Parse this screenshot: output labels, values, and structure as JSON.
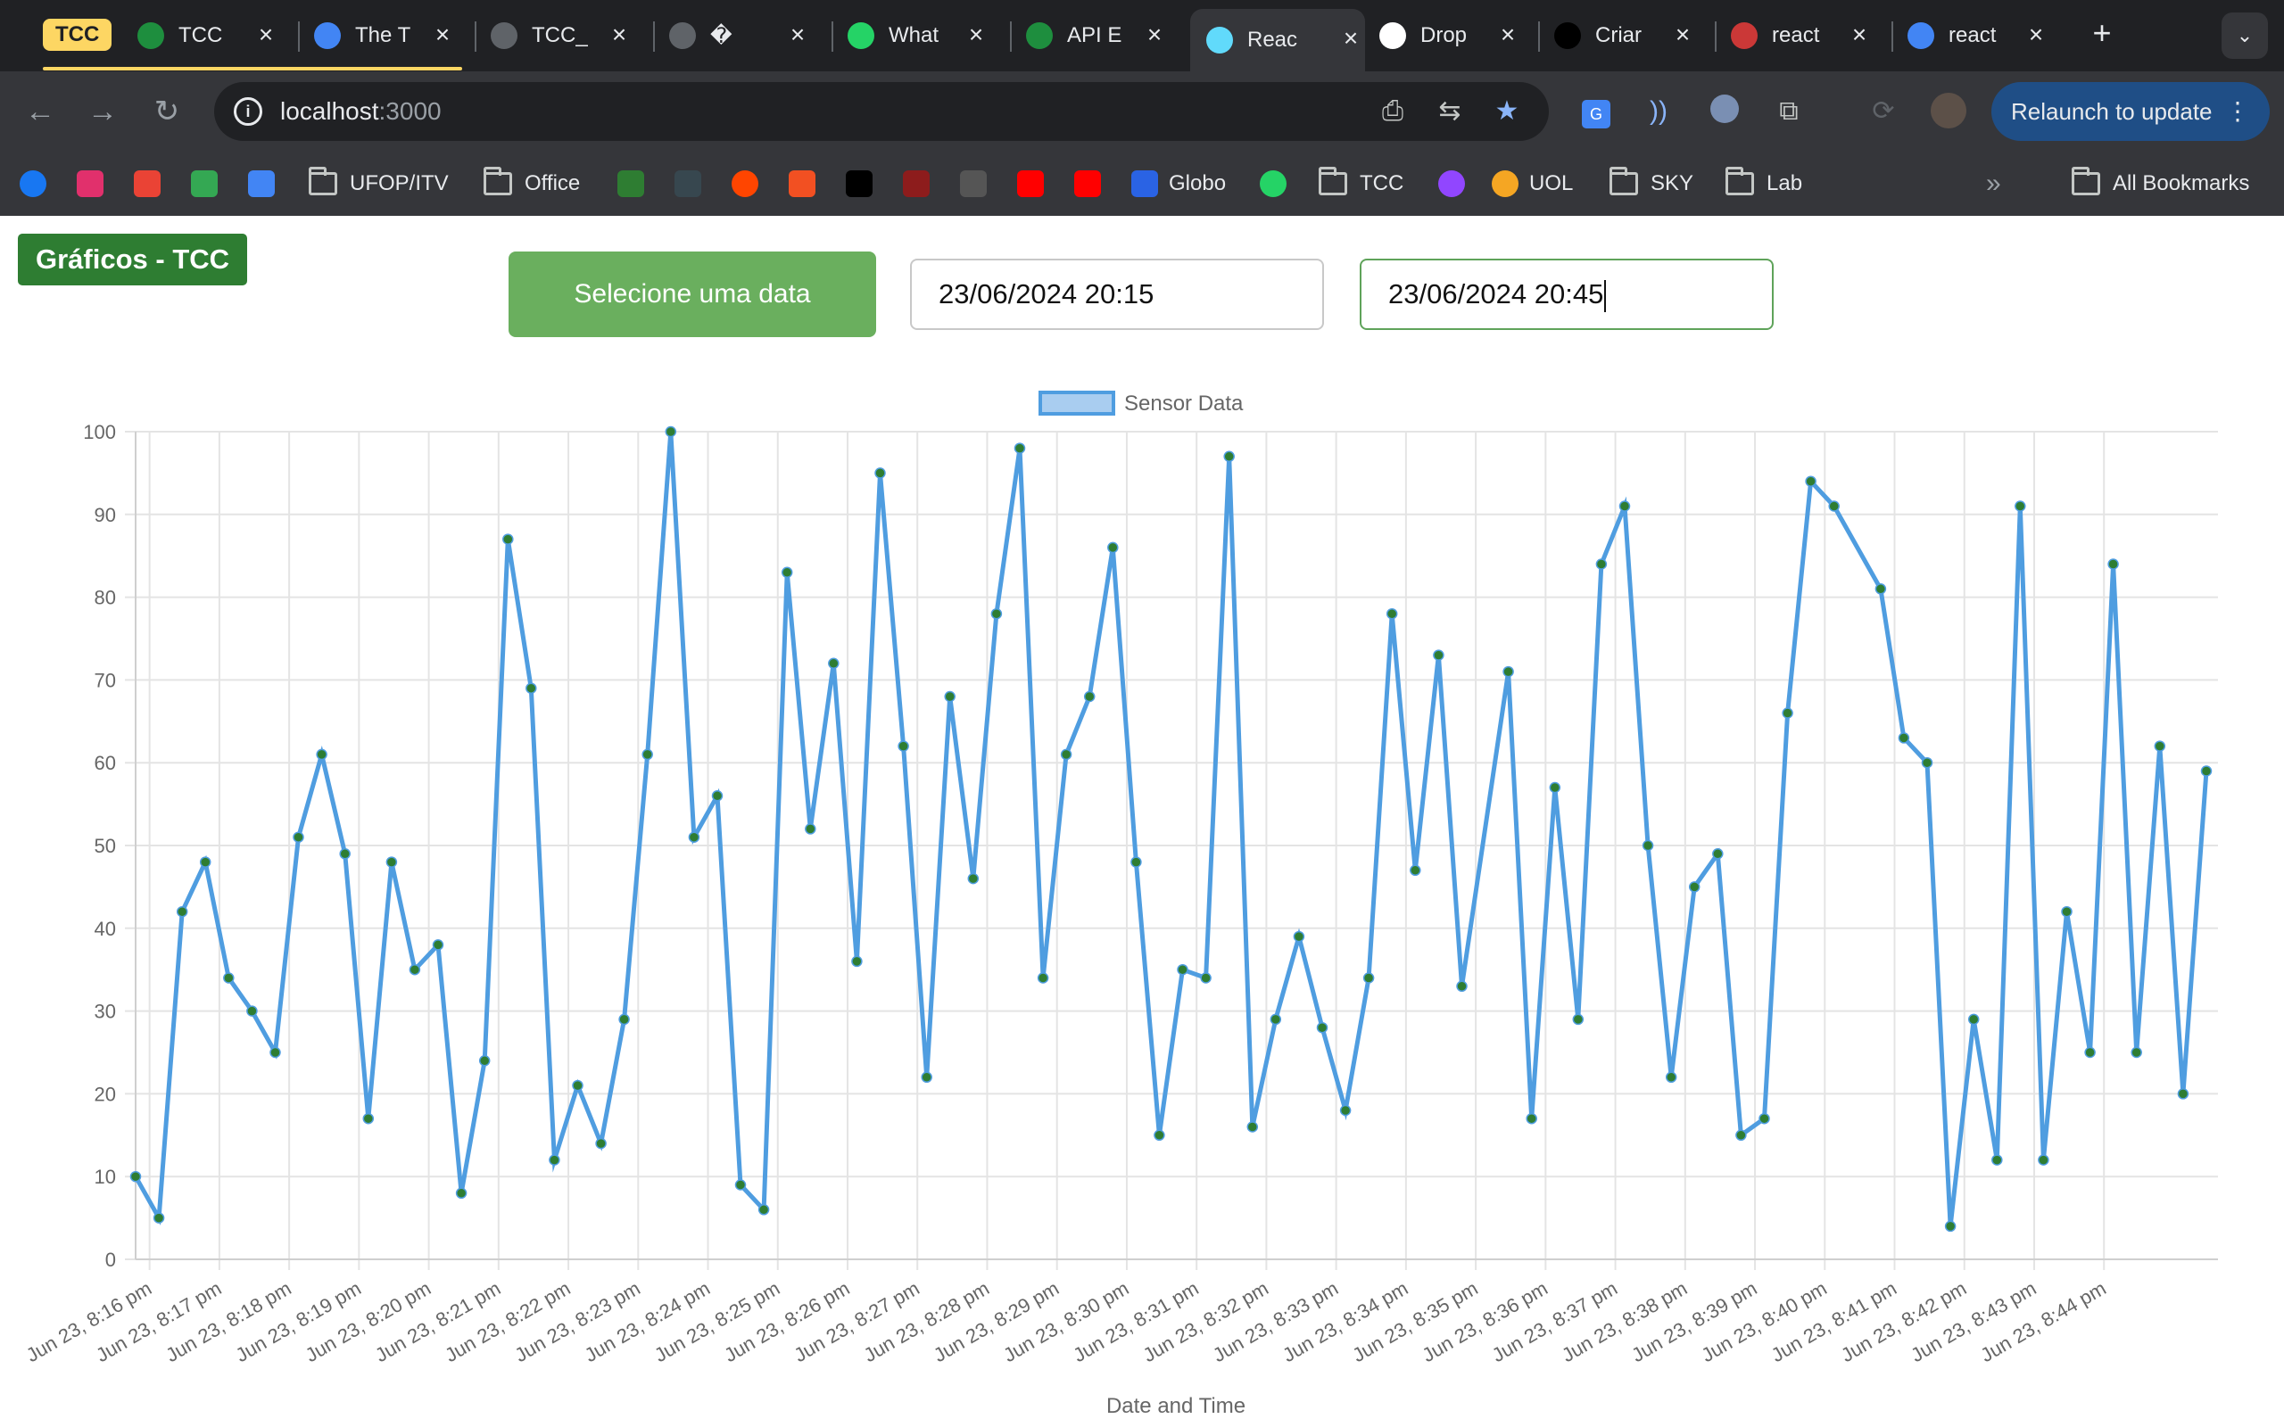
{
  "browser": {
    "tab_group": "TCC",
    "tabs": [
      {
        "title": "TCC",
        "icon": "leaf-icon",
        "color": "#1e8e3e"
      },
      {
        "title": "The T",
        "icon": "circle-logo-icon",
        "color": "#4285f4"
      },
      {
        "title": "TCC_",
        "icon": "globe-icon",
        "color": "#5f6368"
      },
      {
        "title": "�",
        "icon": "globe-icon",
        "color": "#5f6368"
      },
      {
        "title": "What",
        "icon": "whatsapp-icon",
        "color": "#25d366"
      },
      {
        "title": "API E",
        "icon": "alarm-icon",
        "color": "#1e8e3e"
      },
      {
        "title": "Reac",
        "icon": "react-icon",
        "color": "#61dafb"
      },
      {
        "title": "Drop",
        "icon": "openai-icon",
        "color": "#ffffff"
      },
      {
        "title": "Criar",
        "icon": "medium-icon",
        "color": "#000000"
      },
      {
        "title": "react",
        "icon": "npm-icon",
        "color": "#cb3837"
      },
      {
        "title": "react",
        "icon": "google-icon",
        "color": "#4285f4"
      }
    ],
    "address": {
      "host": "localhost",
      "port": ":3000"
    },
    "relaunch_label": "Relaunch to update",
    "bookmarks": [
      {
        "label": "",
        "icon": "facebook-icon",
        "color": "#1877f2"
      },
      {
        "label": "",
        "icon": "instagram-icon",
        "color": "#e1306c"
      },
      {
        "label": "",
        "icon": "gmail-icon",
        "color": "#ea4335"
      },
      {
        "label": "",
        "icon": "google-drive-icon",
        "color": "#34a853"
      },
      {
        "label": "",
        "icon": "google-calendar-icon",
        "color": "#4285f4"
      },
      {
        "label": "UFOP/ITV",
        "icon": "folder-icon"
      },
      {
        "label": "Office",
        "icon": "folder-icon"
      },
      {
        "label": "",
        "icon": "app-icon",
        "color": "#2e7d32"
      },
      {
        "label": "",
        "icon": "app-icon",
        "color": "#37474f"
      },
      {
        "label": "",
        "icon": "reddit-icon",
        "color": "#ff4500"
      },
      {
        "label": "",
        "icon": "microsoft-icon",
        "color": "#f25022"
      },
      {
        "label": "",
        "icon": "x-icon",
        "color": "#000000"
      },
      {
        "label": "",
        "icon": "app-icon",
        "color": "#8d1c1c"
      },
      {
        "label": "",
        "icon": "app-icon",
        "color": "#555555"
      },
      {
        "label": "",
        "icon": "youtube-icon",
        "color": "#ff0000"
      },
      {
        "label": "",
        "icon": "youtube-music-icon",
        "color": "#ff0000"
      },
      {
        "label": "Globo",
        "icon": "globo-icon",
        "color": "#2a63e4"
      },
      {
        "label": "",
        "icon": "whatsapp-icon",
        "color": "#25d366"
      },
      {
        "label": "TCC",
        "icon": "folder-icon"
      },
      {
        "label": "",
        "icon": "twitch-icon",
        "color": "#9146ff"
      },
      {
        "label": "UOL",
        "icon": "uol-icon",
        "color": "#f5a623"
      },
      {
        "label": "SKY",
        "icon": "folder-icon"
      },
      {
        "label": "Lab",
        "icon": "folder-icon"
      }
    ],
    "all_bookmarks_label": "All Bookmarks"
  },
  "app": {
    "title": "Gráficos - TCC",
    "date_button_label": "Selecione uma data",
    "date_start": "23/06/2024 20:15",
    "date_end": "23/06/2024 20:45"
  },
  "chart_data": {
    "type": "line",
    "title": "",
    "xlabel": "Date and Time",
    "ylabel": "",
    "ylim": [
      0,
      100
    ],
    "y_ticks": [
      0,
      10,
      20,
      30,
      40,
      50,
      60,
      70,
      80,
      90,
      100
    ],
    "grid": true,
    "legend_position": "top",
    "line_color": "#4f9de0",
    "point_color": "#2e7d32",
    "x_tick_labels": [
      "Jun 23, 8:16 pm",
      "Jun 23, 8:17 pm",
      "Jun 23, 8:18 pm",
      "Jun 23, 8:19 pm",
      "Jun 23, 8:20 pm",
      "Jun 23, 8:21 pm",
      "Jun 23, 8:22 pm",
      "Jun 23, 8:23 pm",
      "Jun 23, 8:24 pm",
      "Jun 23, 8:25 pm",
      "Jun 23, 8:26 pm",
      "Jun 23, 8:27 pm",
      "Jun 23, 8:28 pm",
      "Jun 23, 8:29 pm",
      "Jun 23, 8:30 pm",
      "Jun 23, 8:31 pm",
      "Jun 23, 8:32 pm",
      "Jun 23, 8:33 pm",
      "Jun 23, 8:34 pm",
      "Jun 23, 8:35 pm",
      "Jun 23, 8:36 pm",
      "Jun 23, 8:37 pm",
      "Jun 23, 8:38 pm",
      "Jun 23, 8:39 pm",
      "Jun 23, 8:40 pm",
      "Jun 23, 8:41 pm",
      "Jun 23, 8:42 pm",
      "Jun 23, 8:43 pm",
      "Jun 23, 8:44 pm"
    ],
    "x_range": [
      "2024-06-23 20:15:48",
      "2024-06-23 20:45:38"
    ],
    "series": [
      {
        "name": "Sensor Data",
        "points": [
          {
            "t": "2024-06-23 20:15:48",
            "y": 10
          },
          {
            "t": "2024-06-23 20:16:08",
            "y": 5
          },
          {
            "t": "2024-06-23 20:16:28",
            "y": 42
          },
          {
            "t": "2024-06-23 20:16:48",
            "y": 48
          },
          {
            "t": "2024-06-23 20:17:08",
            "y": 34
          },
          {
            "t": "2024-06-23 20:17:28",
            "y": 30
          },
          {
            "t": "2024-06-23 20:17:48",
            "y": 25
          },
          {
            "t": "2024-06-23 20:18:08",
            "y": 51
          },
          {
            "t": "2024-06-23 20:18:28",
            "y": 61
          },
          {
            "t": "2024-06-23 20:18:48",
            "y": 49
          },
          {
            "t": "2024-06-23 20:19:08",
            "y": 17
          },
          {
            "t": "2024-06-23 20:19:28",
            "y": 48
          },
          {
            "t": "2024-06-23 20:19:48",
            "y": 35
          },
          {
            "t": "2024-06-23 20:20:08",
            "y": 38
          },
          {
            "t": "2024-06-23 20:20:28",
            "y": 8
          },
          {
            "t": "2024-06-23 20:20:48",
            "y": 24
          },
          {
            "t": "2024-06-23 20:21:08",
            "y": 87
          },
          {
            "t": "2024-06-23 20:21:28",
            "y": 69
          },
          {
            "t": "2024-06-23 20:21:48",
            "y": 12
          },
          {
            "t": "2024-06-23 20:22:08",
            "y": 21
          },
          {
            "t": "2024-06-23 20:22:28",
            "y": 14
          },
          {
            "t": "2024-06-23 20:22:48",
            "y": 29
          },
          {
            "t": "2024-06-23 20:23:08",
            "y": 61
          },
          {
            "t": "2024-06-23 20:23:28",
            "y": 100
          },
          {
            "t": "2024-06-23 20:23:48",
            "y": 51
          },
          {
            "t": "2024-06-23 20:24:08",
            "y": 56
          },
          {
            "t": "2024-06-23 20:24:28",
            "y": 9
          },
          {
            "t": "2024-06-23 20:24:48",
            "y": 6
          },
          {
            "t": "2024-06-23 20:25:08",
            "y": 83
          },
          {
            "t": "2024-06-23 20:25:28",
            "y": 52
          },
          {
            "t": "2024-06-23 20:25:48",
            "y": 72
          },
          {
            "t": "2024-06-23 20:26:08",
            "y": 36
          },
          {
            "t": "2024-06-23 20:26:28",
            "y": 95
          },
          {
            "t": "2024-06-23 20:26:48",
            "y": 62
          },
          {
            "t": "2024-06-23 20:27:08",
            "y": 22
          },
          {
            "t": "2024-06-23 20:27:28",
            "y": 68
          },
          {
            "t": "2024-06-23 20:27:48",
            "y": 46
          },
          {
            "t": "2024-06-23 20:28:08",
            "y": 78
          },
          {
            "t": "2024-06-23 20:28:28",
            "y": 98
          },
          {
            "t": "2024-06-23 20:28:48",
            "y": 34
          },
          {
            "t": "2024-06-23 20:29:08",
            "y": 61
          },
          {
            "t": "2024-06-23 20:29:28",
            "y": 68
          },
          {
            "t": "2024-06-23 20:29:48",
            "y": 86
          },
          {
            "t": "2024-06-23 20:30:08",
            "y": 48
          },
          {
            "t": "2024-06-23 20:30:28",
            "y": 15
          },
          {
            "t": "2024-06-23 20:30:48",
            "y": 35
          },
          {
            "t": "2024-06-23 20:31:08",
            "y": 34
          },
          {
            "t": "2024-06-23 20:31:28",
            "y": 97
          },
          {
            "t": "2024-06-23 20:31:48",
            "y": 16
          },
          {
            "t": "2024-06-23 20:32:08",
            "y": 29
          },
          {
            "t": "2024-06-23 20:32:28",
            "y": 39
          },
          {
            "t": "2024-06-23 20:32:48",
            "y": 28
          },
          {
            "t": "2024-06-23 20:33:08",
            "y": 18
          },
          {
            "t": "2024-06-23 20:33:28",
            "y": 34
          },
          {
            "t": "2024-06-23 20:33:48",
            "y": 78
          },
          {
            "t": "2024-06-23 20:34:08",
            "y": 47
          },
          {
            "t": "2024-06-23 20:34:28",
            "y": 73
          },
          {
            "t": "2024-06-23 20:34:48",
            "y": 33
          },
          {
            "t": "2024-06-23 20:35:28",
            "y": 71
          },
          {
            "t": "2024-06-23 20:35:48",
            "y": 17
          },
          {
            "t": "2024-06-23 20:36:08",
            "y": 57
          },
          {
            "t": "2024-06-23 20:36:28",
            "y": 29
          },
          {
            "t": "2024-06-23 20:36:48",
            "y": 84
          },
          {
            "t": "2024-06-23 20:37:08",
            "y": 91
          },
          {
            "t": "2024-06-23 20:37:28",
            "y": 50
          },
          {
            "t": "2024-06-23 20:37:48",
            "y": 22
          },
          {
            "t": "2024-06-23 20:38:08",
            "y": 45
          },
          {
            "t": "2024-06-23 20:38:28",
            "y": 49
          },
          {
            "t": "2024-06-23 20:38:48",
            "y": 15
          },
          {
            "t": "2024-06-23 20:39:08",
            "y": 17
          },
          {
            "t": "2024-06-23 20:39:28",
            "y": 66
          },
          {
            "t": "2024-06-23 20:39:48",
            "y": 94
          },
          {
            "t": "2024-06-23 20:40:08",
            "y": 91
          },
          {
            "t": "2024-06-23 20:40:48",
            "y": 81
          },
          {
            "t": "2024-06-23 20:41:08",
            "y": 63
          },
          {
            "t": "2024-06-23 20:41:28",
            "y": 60
          },
          {
            "t": "2024-06-23 20:41:48",
            "y": 4
          },
          {
            "t": "2024-06-23 20:42:08",
            "y": 29
          },
          {
            "t": "2024-06-23 20:42:28",
            "y": 12
          },
          {
            "t": "2024-06-23 20:42:48",
            "y": 91
          },
          {
            "t": "2024-06-23 20:43:08",
            "y": 12
          },
          {
            "t": "2024-06-23 20:43:28",
            "y": 42
          },
          {
            "t": "2024-06-23 20:43:48",
            "y": 25
          },
          {
            "t": "2024-06-23 20:44:08",
            "y": 84
          },
          {
            "t": "2024-06-23 20:44:28",
            "y": 25
          },
          {
            "t": "2024-06-23 20:44:48",
            "y": 62
          },
          {
            "t": "2024-06-23 20:45:08",
            "y": 20
          },
          {
            "t": "2024-06-23 20:45:28",
            "y": 59
          }
        ]
      }
    ]
  }
}
